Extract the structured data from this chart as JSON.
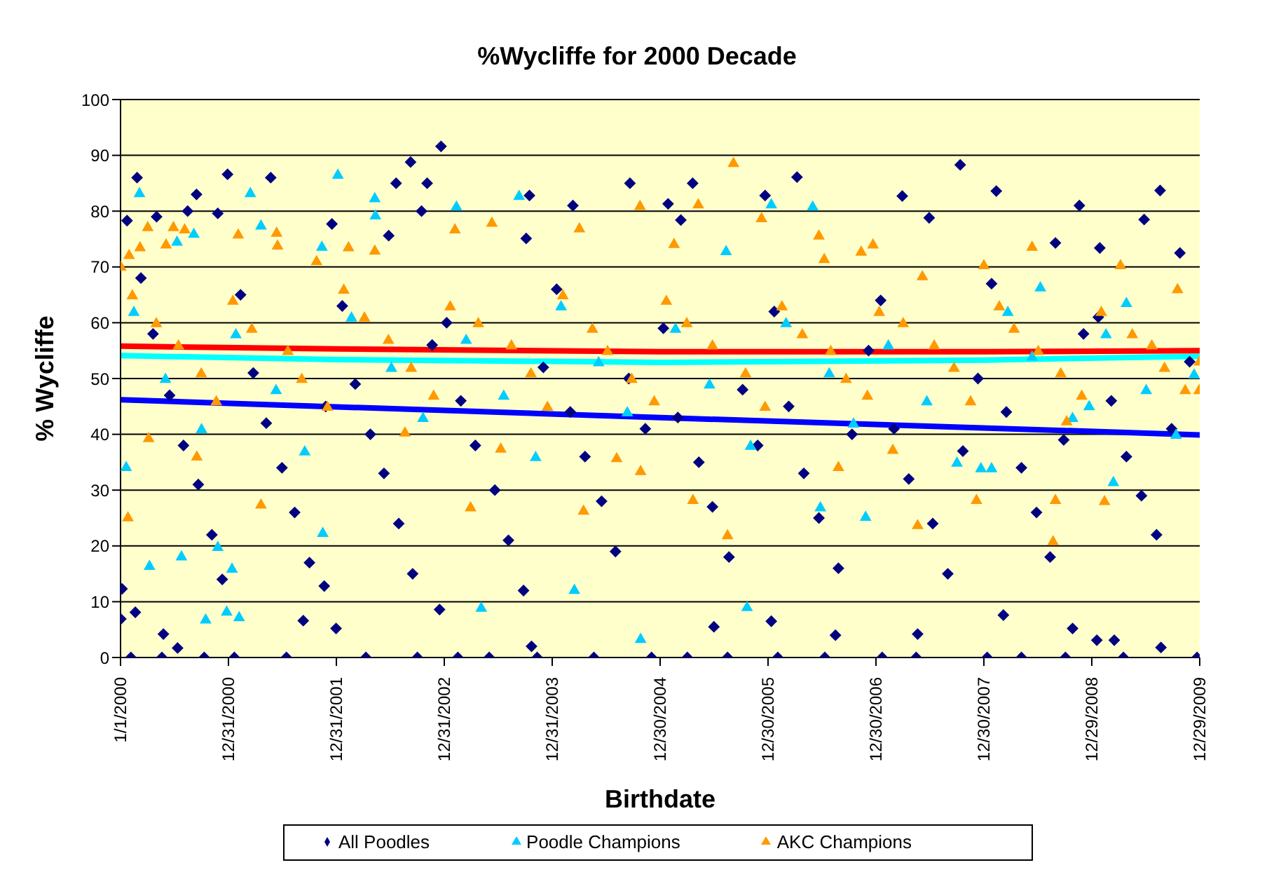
{
  "chart_data": {
    "type": "scatter",
    "title": "%Wycliffe for 2000 Decade",
    "xlabel": "Birthdate",
    "ylabel": "% Wycliffe",
    "xlim": [
      "2000-01-01",
      "2009-12-29"
    ],
    "xticks": [
      {
        "value": "2000-01-01",
        "label": "1/1/2000"
      },
      {
        "value": "2000-12-31",
        "label": "12/31/2000"
      },
      {
        "value": "2001-12-31",
        "label": "12/31/2001"
      },
      {
        "value": "2002-12-31",
        "label": "12/31/2002"
      },
      {
        "value": "2003-12-31",
        "label": "12/31/2003"
      },
      {
        "value": "2004-12-30",
        "label": "12/30/2004"
      },
      {
        "value": "2005-12-30",
        "label": "12/30/2005"
      },
      {
        "value": "2006-12-30",
        "label": "12/30/2006"
      },
      {
        "value": "2007-12-30",
        "label": "12/30/2007"
      },
      {
        "value": "2008-12-29",
        "label": "12/29/2008"
      },
      {
        "value": "2009-12-29",
        "label": "12/29/2009"
      }
    ],
    "ylim": [
      0,
      100
    ],
    "yticks": [
      0,
      10,
      20,
      30,
      40,
      50,
      60,
      70,
      80,
      90,
      100
    ],
    "grid": "y",
    "legend": "bottom",
    "series": [
      {
        "name": "All Poodles",
        "color": "#000080",
        "marker": "diamond",
        "x": [
          "2000-01-23",
          "2000-02-26",
          "2000-05-02",
          "2000-08-15",
          "2000-09-14",
          "2000-11-25",
          "2000-12-28",
          "2001-05-23",
          "2001-12-16",
          "2002-06-26",
          "2002-07-21",
          "2002-09-08",
          "2002-10-15",
          "2002-11-03",
          "2002-12-20",
          "2003-10-04",
          "2003-10-15",
          "2004-03-10",
          "2004-09-19",
          "2005-01-26",
          "2005-03-10",
          "2005-04-19",
          "2005-12-20",
          "2006-04-07",
          "2007-03-29",
          "2007-06-28",
          "2007-10-11",
          "2008-02-10",
          "2008-08-28",
          "2008-11-17",
          "2009-01-25",
          "2009-06-24",
          "2009-08-17",
          "2009-10-23",
          "2000-02-05",
          "2000-05-20",
          "2000-10-10",
          "2001-01-20",
          "2001-07-15",
          "2002-04-10",
          "2002-10-01",
          "2003-02-15",
          "2003-06-01",
          "2003-11-10",
          "2004-05-20",
          "2004-12-01",
          "2005-04-01",
          "2005-08-15",
          "2006-02-01",
          "2006-07-10",
          "2007-01-20",
          "2007-05-15",
          "2008-01-10",
          "2008-05-05",
          "2008-10-01",
          "2009-04-15",
          "2009-12-20",
          "2000-01-02",
          "2000-01-06",
          "2000-02-20",
          "2000-05-25",
          "2000-07-12",
          "2001-09-10",
          "2001-12-30",
          "2001-11-20",
          "2002-12-15",
          "2003-10-22",
          "2005-06-30",
          "2006-01-10",
          "2006-08-15",
          "2007-05-20",
          "2008-03-05",
          "2008-10-25",
          "2009-01-15",
          "2009-03-15",
          "2009-08-20",
          "2000-03-10",
          "2000-04-20",
          "2000-06-15",
          "2000-08-01",
          "2000-09-20",
          "2000-11-05",
          "2000-12-10",
          "2001-02-10",
          "2001-03-25",
          "2001-05-08",
          "2001-06-30",
          "2001-08-12",
          "2001-10-01",
          "2001-11-25",
          "2002-01-20",
          "2002-03-05",
          "2002-04-25",
          "2002-06-10",
          "2002-07-30",
          "2002-09-15",
          "2002-11-20",
          "2003-01-08",
          "2003-02-25",
          "2003-04-15",
          "2003-06-20",
          "2003-08-05",
          "2003-09-25",
          "2003-12-01",
          "2004-01-15",
          "2004-03-01",
          "2004-04-20",
          "2004-06-15",
          "2004-08-01",
          "2004-09-15",
          "2004-11-10",
          "2005-01-10",
          "2005-02-28",
          "2005-05-10",
          "2005-06-25",
          "2005-08-20",
          "2005-10-05",
          "2005-11-25",
          "2006-01-20",
          "2006-03-10",
          "2006-04-30",
          "2006-06-20",
          "2006-08-25",
          "2006-10-10",
          "2006-12-05",
          "2007-01-15",
          "2007-03-01",
          "2007-04-20",
          "2007-07-10",
          "2007-08-30",
          "2007-10-20",
          "2007-12-10",
          "2008-01-25",
          "2008-03-15",
          "2008-05-05",
          "2008-06-25",
          "2008-08-10",
          "2008-09-25",
          "2008-12-01",
          "2009-01-20",
          "2009-03-05",
          "2009-04-25",
          "2009-06-15",
          "2009-08-05",
          "2009-09-25",
          "2009-11-25"
        ],
        "values": [
          78.3,
          86,
          79,
          80,
          83,
          79.6,
          86.6,
          86,
          77.7,
          75.6,
          85,
          88.8,
          80,
          85,
          91.6,
          75.1,
          82.8,
          81,
          85,
          81.3,
          78.4,
          85,
          82.8,
          86.1,
          82.7,
          78.8,
          88.3,
          83.6,
          74.3,
          81,
          73.4,
          78.5,
          83.7,
          72.5,
          0,
          0,
          0,
          0,
          0,
          0,
          0,
          0,
          0,
          0,
          0,
          0,
          0,
          0,
          0,
          0,
          0,
          0,
          0,
          0,
          0,
          0,
          0,
          6.9,
          12.3,
          8.1,
          4.2,
          1.7,
          6.6,
          5.2,
          12.8,
          8.6,
          2,
          5.5,
          6.5,
          4,
          4.2,
          7.6,
          5.2,
          3.1,
          3.1,
          1.8,
          68,
          58,
          47,
          38,
          31,
          22,
          14,
          65,
          51,
          42,
          34,
          26,
          17,
          45,
          63,
          49,
          40,
          33,
          24,
          15,
          56,
          60,
          46,
          38,
          30,
          21,
          12,
          52,
          66,
          44,
          36,
          28,
          19,
          50,
          41,
          59,
          43,
          35,
          27,
          18,
          48,
          38,
          62,
          45,
          33,
          25,
          16,
          40,
          55,
          64,
          41,
          32,
          24,
          15,
          37,
          50,
          67,
          44,
          34,
          26,
          18,
          39,
          58,
          61,
          46,
          36,
          29,
          22,
          41,
          53
        ]
      },
      {
        "name": "Poodle Champions",
        "color": "#00ccff",
        "marker": "triangle",
        "x": [
          "2000-01-20",
          "2000-03-05",
          "2000-04-08",
          "2000-07-10",
          "2000-07-25",
          "2000-09-05",
          "2000-10-15",
          "2000-11-25",
          "2000-12-25",
          "2001-01-12",
          "2001-02-05",
          "2001-03-15",
          "2001-04-20",
          "2001-11-12",
          "2001-11-15",
          "2002-01-05",
          "2002-05-10",
          "2002-05-12",
          "2003-02-10",
          "2003-05-05",
          "2003-09-10",
          "2004-03-15",
          "2004-10-25",
          "2005-08-10",
          "2005-10-20",
          "2006-01-10",
          "2006-05-30",
          "2006-06-25",
          "2006-11-25",
          "2007-12-20",
          "2008-01-25",
          "2008-07-08",
          "2008-12-20",
          "2009-03-12",
          "2009-04-25",
          "2009-12-10",
          "2000-02-15",
          "2000-06-01",
          "2000-10-01",
          "2001-01-25",
          "2001-06-10",
          "2001-09-15",
          "2002-02-20",
          "2002-07-05",
          "2002-10-20",
          "2003-03-15",
          "2003-07-20",
          "2003-11-05",
          "2004-01-30",
          "2004-06-05",
          "2004-09-10",
          "2005-02-20",
          "2005-06-15",
          "2005-11-01",
          "2006-03-01",
          "2006-07-25",
          "2006-10-15",
          "2007-02-10",
          "2007-06-20",
          "2007-09-30",
          "2008-03-20",
          "2008-06-10",
          "2008-10-25",
          "2009-02-15",
          "2009-07-01",
          "2009-10-10"
        ],
        "values": [
          34.2,
          83.3,
          16.5,
          74.6,
          18.2,
          76,
          6.9,
          19.9,
          8.3,
          16,
          7.3,
          83.3,
          77.5,
          73.7,
          22.4,
          86.6,
          82.4,
          79.3,
          80.9,
          9,
          82.8,
          12.2,
          3.4,
          72.9,
          9.1,
          81.3,
          80.9,
          27,
          25.3,
          34,
          34,
          66.4,
          45.1,
          31.5,
          63.6,
          50.8,
          62,
          50,
          41,
          58,
          48,
          37,
          61,
          52,
          43,
          57,
          47,
          36,
          63,
          53,
          44,
          59,
          49,
          38,
          60,
          51,
          42,
          56,
          46,
          35,
          62,
          54,
          43,
          58,
          48,
          40
        ]
      },
      {
        "name": "AKC Champions",
        "color": "#ff9900",
        "marker": "triangle",
        "x": [
          "2000-01-02",
          "2000-01-26",
          "2000-01-30",
          "2000-03-07",
          "2000-04-02",
          "2000-04-05",
          "2000-06-03",
          "2000-06-28",
          "2000-08-05",
          "2000-09-15",
          "2001-02-02",
          "2001-04-20",
          "2001-06-12",
          "2001-06-15",
          "2001-10-25",
          "2002-02-10",
          "2002-05-10",
          "2002-08-20",
          "2003-02-05",
          "2003-03-30",
          "2003-06-10",
          "2003-07-10",
          "2004-04-01",
          "2004-04-15",
          "2004-08-05",
          "2004-10-23",
          "2004-10-25",
          "2005-02-15",
          "2005-04-20",
          "2005-05-08",
          "2005-08-15",
          "2005-09-04",
          "2005-12-08",
          "2006-06-20",
          "2006-07-08",
          "2006-08-25",
          "2006-11-10",
          "2006-12-20",
          "2007-02-25",
          "2007-05-20",
          "2007-06-05",
          "2007-12-05",
          "2007-12-30",
          "2008-06-10",
          "2008-08-20",
          "2008-08-28",
          "2008-10-05",
          "2009-02-10",
          "2009-04-05",
          "2009-10-15",
          "2009-12-28",
          "2009-12-27",
          "2000-02-10",
          "2000-05-01",
          "2000-07-15",
          "2000-09-30",
          "2000-11-20",
          "2001-01-15",
          "2001-03-20",
          "2001-07-20",
          "2001-09-05",
          "2001-12-01",
          "2002-01-25",
          "2002-04-05",
          "2002-06-25",
          "2002-09-10",
          "2002-11-25",
          "2003-01-20",
          "2003-04-25",
          "2003-08-15",
          "2003-10-20",
          "2003-12-15",
          "2004-02-05",
          "2004-05-15",
          "2004-07-05",
          "2004-09-25",
          "2004-12-10",
          "2005-01-20",
          "2005-03-30",
          "2005-06-25",
          "2005-10-15",
          "2005-12-20",
          "2006-02-15",
          "2006-04-25",
          "2006-07-30",
          "2006-09-20",
          "2006-12-01",
          "2007-01-10",
          "2007-04-01",
          "2007-07-15",
          "2007-09-20",
          "2007-11-15",
          "2008-02-20",
          "2008-04-10",
          "2008-07-01",
          "2008-09-15",
          "2008-11-25",
          "2009-01-30",
          "2009-05-15",
          "2009-07-20",
          "2009-09-01",
          "2009-11-10"
        ],
        "values": [
          70.1,
          25.2,
          72.2,
          73.6,
          77.2,
          39.4,
          74.1,
          77.2,
          76.8,
          36.1,
          75.9,
          27.5,
          76.2,
          73.9,
          71.1,
          73.6,
          73,
          40.4,
          76.8,
          27,
          78,
          37.5,
          77,
          26.4,
          35.8,
          81,
          33.5,
          74.2,
          28.3,
          81.3,
          22,
          88.7,
          78.8,
          75.7,
          71.5,
          34.2,
          72.8,
          74.1,
          37.3,
          23.8,
          68.4,
          28.3,
          70.4,
          73.7,
          20.9,
          28.3,
          42.4,
          28.1,
          70.4,
          66.1,
          53.1,
          48,
          65,
          60,
          56,
          51,
          46,
          64,
          59,
          55,
          50,
          45,
          66,
          61,
          57,
          52,
          47,
          63,
          60,
          56,
          51,
          45,
          65,
          59,
          55,
          50,
          46,
          64,
          60,
          56,
          51,
          45,
          63,
          58,
          55,
          50,
          47,
          62,
          60,
          56,
          52,
          46,
          63,
          59,
          55,
          51,
          47,
          62,
          58,
          56,
          52,
          48
        ]
      },
      {
        "type": "line",
        "color": "#0000ff",
        "x": [
          "2000-01-01",
          "2005-01-01",
          "2009-12-29"
        ],
        "values": [
          46.2,
          43,
          39.9
        ]
      },
      {
        "type": "line",
        "color": "#00ffff",
        "x": [
          "2000-01-01",
          "2002-01-01",
          "2005-01-01",
          "2008-01-01",
          "2009-12-29"
        ],
        "values": [
          54.1,
          53.4,
          52.9,
          53.3,
          54
        ]
      },
      {
        "type": "line",
        "color": "#ff0000",
        "x": [
          "2000-01-01",
          "2002-01-01",
          "2005-01-01",
          "2008-01-01",
          "2009-12-29"
        ],
        "values": [
          55.8,
          55.3,
          54.8,
          54.8,
          55
        ]
      }
    ]
  }
}
